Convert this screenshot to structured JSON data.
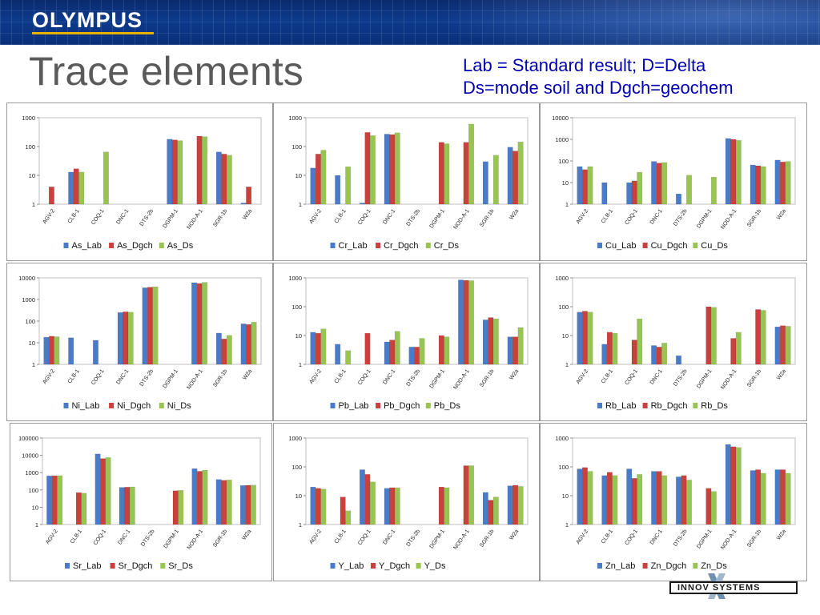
{
  "header": {
    "logo": "OLYMPUS",
    "title": "Trace elements",
    "subtitle_line1": "Lab = Standard result; D=Delta",
    "subtitle_line2": "Ds=mode soil and Dgch=geochem",
    "footer_logo": "INNOV SYSTEMS"
  },
  "colors": {
    "lab": "#4a7bc8",
    "dgch": "#c9403c",
    "ds": "#98c454"
  },
  "chart_data": [
    {
      "type": "bar",
      "element": "As",
      "log": true,
      "ymax": 1000,
      "yticks": [
        "1",
        "10",
        "100",
        "1000"
      ],
      "categories": [
        "AGV-2",
        "CLB-1",
        "COQ-1",
        "DNC-1",
        "DTS-2b",
        "DGPM-1",
        "NOD-A-1",
        "SGR-1b",
        "W2a"
      ],
      "series": [
        {
          "name": "As_Lab",
          "values": [
            null,
            13,
            null,
            null,
            null,
            180,
            null,
            65,
            1.1
          ]
        },
        {
          "name": "As_Dgch",
          "values": [
            4,
            17,
            null,
            null,
            null,
            170,
            230,
            55,
            4
          ]
        },
        {
          "name": "As_Ds",
          "values": [
            null,
            13,
            65,
            null,
            null,
            160,
            220,
            50,
            null
          ]
        }
      ]
    },
    {
      "type": "bar",
      "element": "Cr",
      "log": true,
      "ymax": 1000,
      "yticks": [
        "1",
        "10",
        "100",
        "1000"
      ],
      "categories": [
        "AGV-2",
        "CLB-1",
        "COQ-1",
        "DNC-1",
        "DTS-2b",
        "DGPM-1",
        "NOD-A-1",
        "SGR-1b",
        "W2a"
      ],
      "series": [
        {
          "name": "Cr_Lab",
          "values": [
            18,
            10,
            1.1,
            270,
            null,
            null,
            null,
            30,
            95
          ]
        },
        {
          "name": "Cr_Dgch",
          "values": [
            55,
            null,
            310,
            260,
            null,
            140,
            140,
            null,
            70
          ]
        },
        {
          "name": "Cr_Ds",
          "values": [
            75,
            20,
            240,
            300,
            null,
            125,
            600,
            50,
            145
          ]
        }
      ]
    },
    {
      "type": "bar",
      "element": "Cu",
      "log": true,
      "ymax": 10000,
      "yticks": [
        "1",
        "10",
        "100",
        "1000",
        "10000"
      ],
      "categories": [
        "AGV-2",
        "CLB-1",
        "COQ-1",
        "DNC-1",
        "DTS-2b",
        "DGPM-1",
        "NOD-A-1",
        "SGR-1b",
        "W2a"
      ],
      "series": [
        {
          "name": "Cu_Lab",
          "values": [
            55,
            10,
            10,
            95,
            3,
            null,
            1100,
            65,
            110
          ]
        },
        {
          "name": "Cu_Dgch",
          "values": [
            40,
            null,
            12,
            80,
            null,
            null,
            1000,
            60,
            90
          ]
        },
        {
          "name": "Cu_Ds",
          "values": [
            55,
            null,
            30,
            85,
            22,
            18,
            900,
            55,
            95
          ]
        }
      ]
    },
    {
      "type": "bar",
      "element": "Ni",
      "log": true,
      "ymax": 10000,
      "yticks": [
        "1",
        "10",
        "100",
        "1000",
        "10000"
      ],
      "categories": [
        "AGV-2",
        "CLB-1",
        "COQ-1",
        "DNC-1",
        "DTS-2b",
        "DGPM-1",
        "NOD-A-1",
        "SGR-1b",
        "W2a"
      ],
      "series": [
        {
          "name": "Ni_Lab",
          "values": [
            18,
            17,
            13,
            250,
            3500,
            null,
            6000,
            28,
            75
          ]
        },
        {
          "name": "Ni_Dgch",
          "values": [
            20,
            null,
            null,
            270,
            3700,
            null,
            5500,
            15,
            70
          ]
        },
        {
          "name": "Ni_Ds",
          "values": [
            19,
            null,
            null,
            260,
            3900,
            null,
            6200,
            22,
            90
          ]
        }
      ]
    },
    {
      "type": "bar",
      "element": "Pb",
      "log": true,
      "ymax": 1000,
      "yticks": [
        "1",
        "10",
        "100",
        "1000"
      ],
      "categories": [
        "AGV-2",
        "CLB-1",
        "COQ-1",
        "DNC-1",
        "DTS-2b",
        "DGPM-1",
        "NOD-A-1",
        "SGR-1b",
        "W2a"
      ],
      "series": [
        {
          "name": "Pb_Lab",
          "values": [
            13,
            5,
            null,
            6,
            4,
            null,
            850,
            35,
            9
          ]
        },
        {
          "name": "Pb_Dgch",
          "values": [
            12,
            null,
            12,
            7,
            4,
            10,
            820,
            42,
            9
          ]
        },
        {
          "name": "Pb_Ds",
          "values": [
            17,
            3,
            null,
            14,
            8,
            9,
            800,
            38,
            19
          ]
        }
      ]
    },
    {
      "type": "bar",
      "element": "Rb",
      "log": true,
      "ymax": 1000,
      "yticks": [
        "1",
        "10",
        "100",
        "1000"
      ],
      "categories": [
        "AGV-2",
        "CLB-1",
        "COQ-1",
        "DNC-1",
        "DTS-2b",
        "DGPM-1",
        "NOD-A-1",
        "SGR-1b",
        "W2a"
      ],
      "series": [
        {
          "name": "Rb_Lab",
          "values": [
            65,
            5,
            null,
            4.5,
            2,
            null,
            null,
            null,
            20
          ]
        },
        {
          "name": "Rb_Dgch",
          "values": [
            70,
            13,
            7,
            4,
            null,
            100,
            8,
            80,
            22
          ]
        },
        {
          "name": "Rb_Ds",
          "values": [
            65,
            12,
            38,
            5.5,
            null,
            95,
            13,
            75,
            21
          ]
        }
      ]
    },
    {
      "type": "bar",
      "element": "Sr",
      "log": true,
      "ymax": 100000,
      "yticks": [
        "1",
        "10",
        "100",
        "1000",
        "10000",
        "100000"
      ],
      "categories": [
        "AGV-2",
        "CLB-1",
        "COQ-1",
        "DNC-1",
        "DTS-2b",
        "DGPM-1",
        "NOD-A-1",
        "SGR-1b",
        "W2a"
      ],
      "series": [
        {
          "name": "Sr_Lab",
          "values": [
            650,
            null,
            12000,
            140,
            null,
            null,
            1700,
            400,
            180
          ]
        },
        {
          "name": "Sr_Dgch",
          "values": [
            660,
            70,
            6500,
            145,
            null,
            90,
            1200,
            360,
            185
          ]
        },
        {
          "name": "Sr_Ds",
          "values": [
            670,
            65,
            7500,
            150,
            null,
            95,
            1400,
            380,
            190
          ]
        }
      ]
    },
    {
      "type": "bar",
      "element": "Y",
      "log": true,
      "ymax": 1000,
      "yticks": [
        "1",
        "10",
        "100",
        "1000"
      ],
      "categories": [
        "AGV-2",
        "CLB-1",
        "COQ-1",
        "DNC-1",
        "DTS-2b",
        "DGPM-1",
        "NOD-A-1",
        "SGR-1b",
        "W2a"
      ],
      "series": [
        {
          "name": "Y_Lab",
          "values": [
            20,
            null,
            80,
            18,
            null,
            null,
            null,
            13,
            22
          ]
        },
        {
          "name": "Y_Dgch",
          "values": [
            18,
            9,
            55,
            19,
            null,
            20,
            110,
            7,
            23
          ]
        },
        {
          "name": "Y_Ds",
          "values": [
            17,
            3,
            30,
            19,
            null,
            19,
            110,
            9,
            21
          ]
        }
      ]
    },
    {
      "type": "bar",
      "element": "Zn",
      "log": true,
      "ymax": 1000,
      "yticks": [
        "1",
        "10",
        "100",
        "1000"
      ],
      "categories": [
        "AGV-2",
        "CLB-1",
        "COQ-1",
        "DNC-1",
        "DTS-2b",
        "DGPM-1",
        "NOD-A-1",
        "SGR-1b",
        "W2a"
      ],
      "series": [
        {
          "name": "Zn_Lab",
          "values": [
            85,
            50,
            85,
            70,
            45,
            null,
            600,
            75,
            80
          ]
        },
        {
          "name": "Zn_Dgch",
          "values": [
            95,
            65,
            40,
            70,
            50,
            18,
            500,
            80,
            80
          ]
        },
        {
          "name": "Zn_Ds",
          "values": [
            70,
            50,
            55,
            50,
            35,
            14,
            470,
            60,
            60
          ]
        }
      ]
    }
  ]
}
